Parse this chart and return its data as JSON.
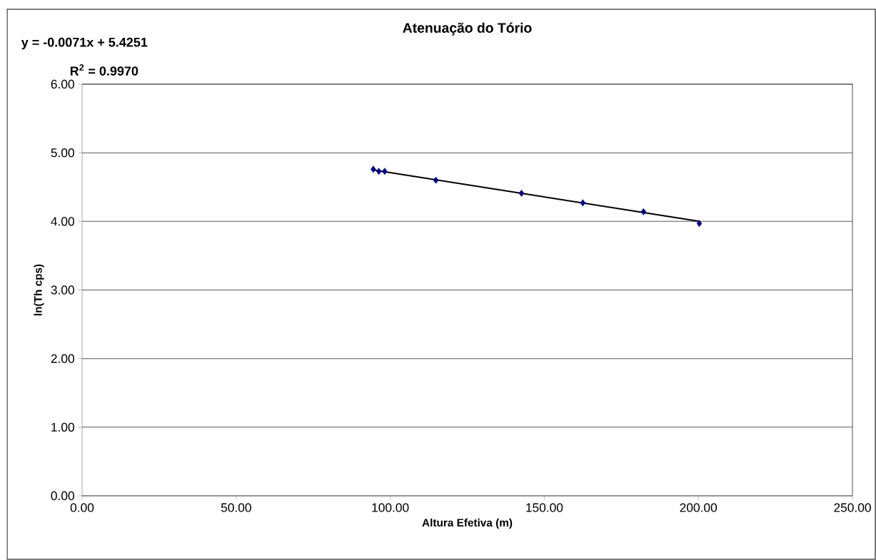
{
  "chart_data": {
    "type": "scatter",
    "title": "Atenuação do Tório",
    "xlabel": "Altura Efetiva (m)",
    "ylabel": "ln(Th cps)",
    "annotations": [
      "y = -0.0071x + 5.4251",
      "R$^{2}$ = 0.9970"
    ],
    "series": [
      {
        "type": "scatter",
        "color": "#000080",
        "marker": "diamond",
        "x": [
          94.5,
          96.3,
          98.2,
          114.8,
          142.6,
          162.5,
          182.2,
          200.3
        ],
        "values": [
          4.76,
          4.73,
          4.73,
          4.6,
          4.41,
          4.27,
          4.14,
          3.97
        ]
      },
      {
        "type": "line",
        "color": "#000000",
        "x": [
          94.5,
          200.3
        ],
        "values": [
          4.75,
          4.0
        ]
      }
    ],
    "xlim": [
      0,
      250
    ],
    "ylim": [
      0,
      6
    ],
    "xticks": [
      {
        "value": 0,
        "label": "0.00"
      },
      {
        "value": 50,
        "label": "50.00"
      },
      {
        "value": 100,
        "label": "100.00"
      },
      {
        "value": 150,
        "label": "150.00"
      },
      {
        "value": 200,
        "label": "200.00"
      },
      {
        "value": 250,
        "label": "250.00"
      }
    ],
    "yticks": [
      {
        "value": 0,
        "label": "0.00"
      },
      {
        "value": 1,
        "label": "1.00"
      },
      {
        "value": 2,
        "label": "2.00"
      },
      {
        "value": 3,
        "label": "3.00"
      },
      {
        "value": 4,
        "label": "4.00"
      },
      {
        "value": 5,
        "label": "5.00"
      },
      {
        "value": 6,
        "label": "6.00"
      }
    ],
    "grid": "y"
  }
}
